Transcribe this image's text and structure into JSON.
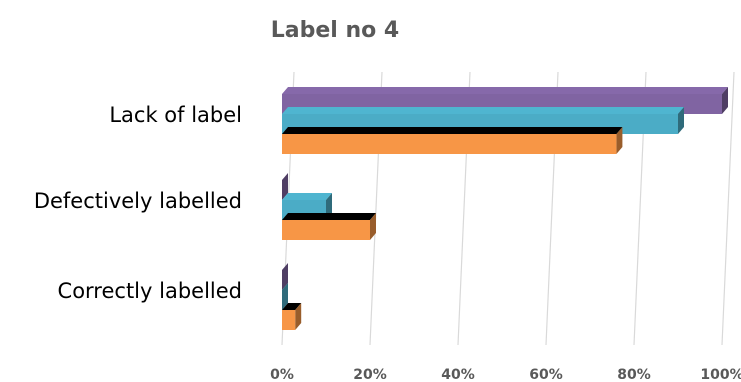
{
  "chart_data": {
    "type": "bar",
    "orientation": "horizontal",
    "style": "3d-clustered",
    "title": "Label no 4",
    "categories": [
      "Lack of label",
      "Defectively labelled",
      "Correctly labelled"
    ],
    "series": [
      {
        "color": "#f79646",
        "values": [
          76,
          20,
          3
        ]
      },
      {
        "color": "#4bacc6",
        "values": [
          90,
          10,
          0
        ]
      },
      {
        "color": "#8064a2",
        "values": [
          100,
          0,
          0
        ]
      }
    ],
    "xlim": [
      0,
      100
    ],
    "x_ticks": [
      "0%",
      "20%",
      "40%",
      "60%",
      "80%",
      "100%"
    ],
    "xlabel": "",
    "ylabel": "",
    "grid": true,
    "legend": "none"
  }
}
